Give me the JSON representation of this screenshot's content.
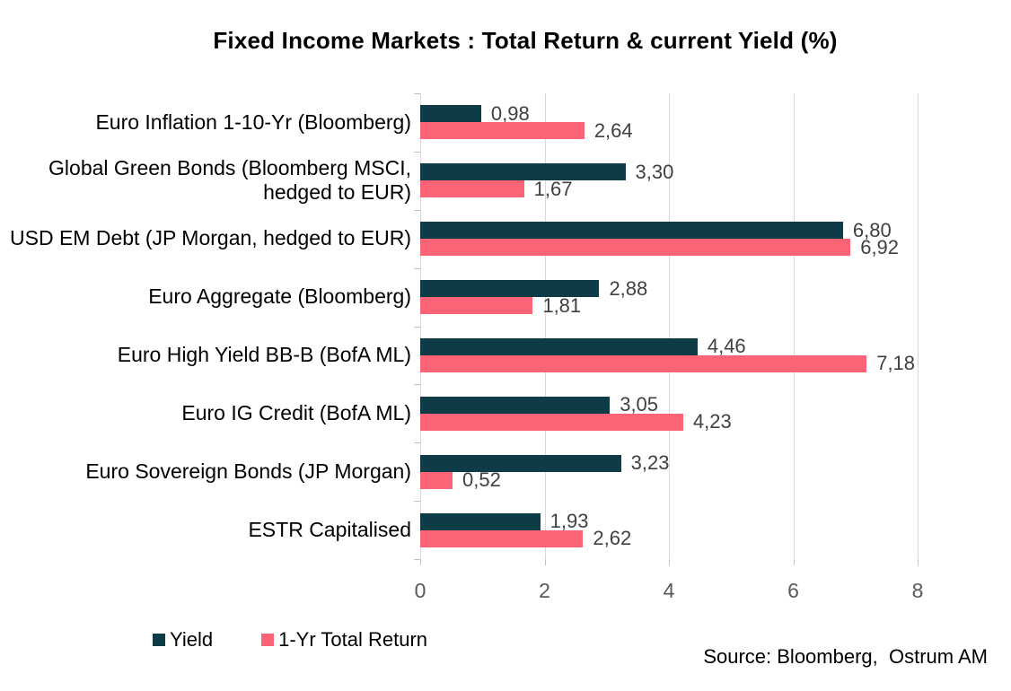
{
  "title": "Fixed Income Markets : Total Return & current Yield (%)",
  "source": "Source: Bloomberg,  Ostrum AM",
  "colors": {
    "yield": "#0e3c46",
    "total_return": "#fb6476",
    "gridline": "#d9d9d9",
    "value_label": "#404040",
    "tick_label": "#595959"
  },
  "chart_data": {
    "type": "bar",
    "orientation": "horizontal",
    "title": "Fixed Income Markets : Total Return & current Yield (%)",
    "categories": [
      "Euro Inflation 1-10-Yr (Bloomberg)",
      "Global Green Bonds (Bloomberg MSCI, hedged to EUR)",
      "USD EM Debt (JP Morgan, hedged to EUR)",
      "Euro Aggregate (Bloomberg)",
      "Euro High Yield BB-B (BofA ML)",
      "Euro IG Credit (BofA ML)",
      "Euro Sovereign Bonds (JP Morgan)",
      "ESTR Capitalised"
    ],
    "series": [
      {
        "name": "Yield",
        "color": "#0e3c46",
        "values": [
          0.98,
          3.3,
          6.8,
          2.88,
          4.46,
          3.05,
          3.23,
          1.93
        ],
        "labels": [
          "0,98",
          "3,30",
          "6,80",
          "2,88",
          "4,46",
          "3,05",
          "3,23",
          "1,93"
        ]
      },
      {
        "name": "1-Yr Total Return",
        "color": "#fb6476",
        "values": [
          2.64,
          1.67,
          6.92,
          1.81,
          7.18,
          4.23,
          0.52,
          2.62
        ],
        "labels": [
          "2,64",
          "1,67",
          "6,92",
          "1,81",
          "7,18",
          "4,23",
          "0,52",
          "2,62"
        ]
      }
    ],
    "x_ticks": [
      "0",
      "2",
      "4",
      "6",
      "8"
    ],
    "xlim": [
      0,
      8
    ],
    "grid": "vertical",
    "legend_position": "bottom-left",
    "value_decimal_separator": ","
  }
}
